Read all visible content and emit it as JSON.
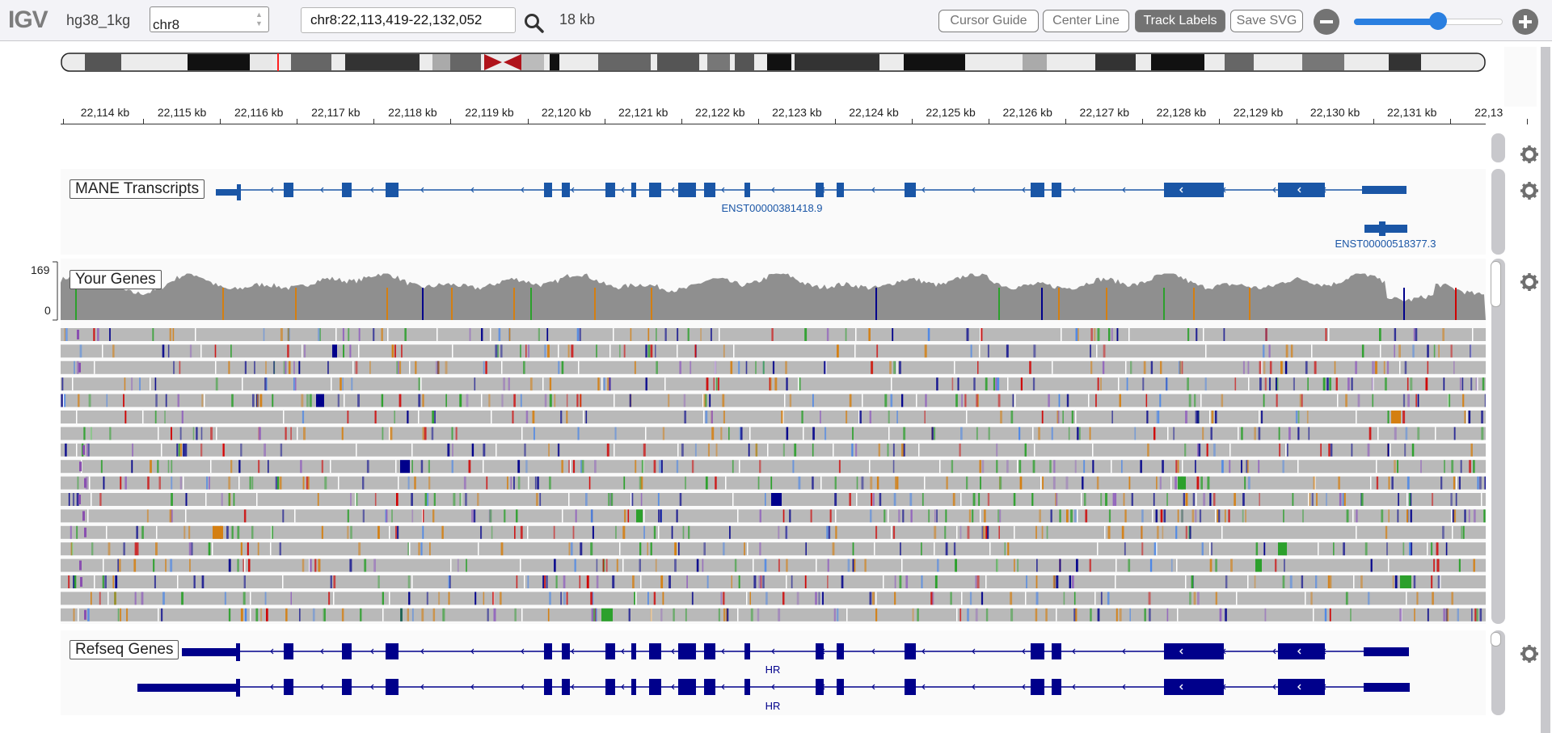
{
  "navbar": {
    "logo": "IGV",
    "genome": "hg38_1kg",
    "chromosome": "chr8",
    "locus": "chr8:22,113,419-22,132,052",
    "span": "18 kb",
    "buttons": {
      "cursor_guide": "Cursor Guide",
      "center_line": "Center Line",
      "track_labels": "Track Labels",
      "save_svg": "Save SVG"
    },
    "zoom_level": 0.57
  },
  "colors": {
    "navy_gene": "#00008b",
    "mane_blue": "#1a56a6",
    "read_gray": "#b9b9b9",
    "coverage_gray": "#8f8f8f",
    "button_gray": "#737373",
    "accent": "#2a7fe0"
  },
  "ruler": {
    "ticks": [
      "22,114 kb",
      "22,115 kb",
      "22,116 kb",
      "22,117 kb",
      "22,118 kb",
      "22,119 kb",
      "22,120 kb",
      "22,121 kb",
      "22,122 kb",
      "22,123 kb",
      "22,124 kb",
      "22,125 kb",
      "22,126 kb",
      "22,127 kb",
      "22,128 kb",
      "22,129 kb",
      "22,130 kb",
      "22,131 kb",
      "22,13"
    ]
  },
  "tracks": {
    "mane": {
      "label": "MANE Transcripts",
      "transcripts": [
        "ENST00000381418.9",
        "ENST00000518377.3"
      ]
    },
    "your_genes": {
      "label": "Your Genes",
      "coverage_max": "169",
      "coverage_min": "0"
    },
    "refseq": {
      "label": "Refseq Genes",
      "genes": [
        "HR",
        "HR"
      ]
    }
  },
  "icons": {
    "search": "search-icon",
    "zoom_out": "minus-circle-icon",
    "zoom_in": "plus-circle-icon",
    "gear": "gear-icon",
    "chevron": "chevron-left-icon"
  }
}
